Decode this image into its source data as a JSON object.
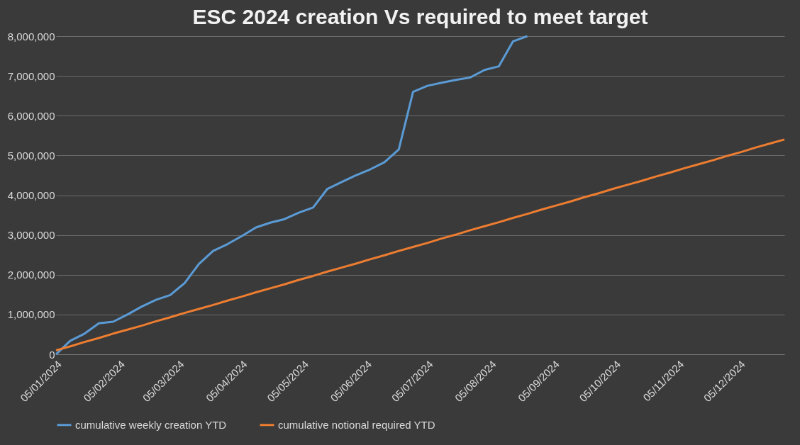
{
  "chart_data": {
    "type": "line",
    "title": "ESC 2024 creation Vs required to meet target",
    "x": [
      "2024-01-05",
      "2024-01-12",
      "2024-01-19",
      "2024-01-26",
      "2024-02-02",
      "2024-02-09",
      "2024-02-16",
      "2024-02-23",
      "2024-03-01",
      "2024-03-08",
      "2024-03-15",
      "2024-03-22",
      "2024-03-29",
      "2024-04-05",
      "2024-04-12",
      "2024-04-19",
      "2024-04-26",
      "2024-05-03",
      "2024-05-10",
      "2024-05-17",
      "2024-05-24",
      "2024-05-31",
      "2024-06-07",
      "2024-06-14",
      "2024-06-21",
      "2024-06-28",
      "2024-07-05",
      "2024-07-12",
      "2024-07-19",
      "2024-07-26",
      "2024-08-02",
      "2024-08-09",
      "2024-08-16",
      "2024-08-23",
      "2024-08-30",
      "2024-09-06",
      "2024-09-13",
      "2024-09-20",
      "2024-09-27",
      "2024-10-04",
      "2024-10-11",
      "2024-10-18",
      "2024-10-25",
      "2024-11-01",
      "2024-11-08",
      "2024-11-15",
      "2024-11-22",
      "2024-11-29",
      "2024-12-06",
      "2024-12-13",
      "2024-12-20",
      "2024-12-27"
    ],
    "series": [
      {
        "name": "cumulative weekly creation YTD",
        "color": "#5b9bd5",
        "values": [
          0,
          340000,
          520000,
          780000,
          820000,
          1000000,
          1200000,
          1370000,
          1490000,
          1790000,
          2270000,
          2600000,
          2770000,
          2970000,
          3190000,
          3310000,
          3400000,
          3560000,
          3690000,
          4160000,
          4330000,
          4500000,
          4650000,
          4830000,
          5150000,
          6600000,
          6750000,
          6830000,
          6900000,
          6960000,
          7150000,
          7240000,
          7870000,
          8000000,
          null,
          null,
          null,
          null,
          null,
          null,
          null,
          null,
          null,
          null,
          null,
          null,
          null,
          null,
          null,
          null,
          null,
          null
        ]
      },
      {
        "name": "cumulative notional required YTD",
        "color": "#ed7d31",
        "values": [
          100000,
          200000,
          310000,
          410000,
          520000,
          620000,
          720000,
          830000,
          930000,
          1040000,
          1140000,
          1240000,
          1350000,
          1450000,
          1560000,
          1660000,
          1760000,
          1870000,
          1970000,
          2080000,
          2180000,
          2280000,
          2390000,
          2490000,
          2600000,
          2700000,
          2800000,
          2910000,
          3010000,
          3120000,
          3220000,
          3320000,
          3430000,
          3530000,
          3640000,
          3740000,
          3840000,
          3950000,
          4050000,
          4160000,
          4260000,
          4360000,
          4470000,
          4570000,
          4680000,
          4780000,
          4880000,
          4990000,
          5090000,
          5200000,
          5300000,
          5400000
        ]
      }
    ],
    "xlim": [
      "2024-01-05",
      "2024-12-27"
    ],
    "xticks": [
      {
        "value": "2024-01-05",
        "label": "05/01/2024"
      },
      {
        "value": "2024-02-05",
        "label": "05/02/2024"
      },
      {
        "value": "2024-03-05",
        "label": "05/03/2024"
      },
      {
        "value": "2024-04-05",
        "label": "05/04/2024"
      },
      {
        "value": "2024-05-05",
        "label": "05/05/2024"
      },
      {
        "value": "2024-06-05",
        "label": "05/06/2024"
      },
      {
        "value": "2024-07-05",
        "label": "05/07/2024"
      },
      {
        "value": "2024-08-05",
        "label": "05/08/2024"
      },
      {
        "value": "2024-09-05",
        "label": "05/09/2024"
      },
      {
        "value": "2024-10-05",
        "label": "05/10/2024"
      },
      {
        "value": "2024-11-05",
        "label": "05/11/2024"
      },
      {
        "value": "2024-12-05",
        "label": "05/12/2024"
      }
    ],
    "ylim": [
      0,
      8000000
    ],
    "yticks": [
      0,
      {
        "value": 1000000,
        "label": "1,000,000"
      },
      {
        "value": 2000000,
        "label": "2,000,000"
      },
      {
        "value": 3000000,
        "label": "3,000,000"
      },
      {
        "value": 4000000,
        "label": "4,000,000"
      },
      {
        "value": 5000000,
        "label": "5,000,000"
      },
      {
        "value": 6000000,
        "label": "6,000,000"
      },
      {
        "value": 7000000,
        "label": "7,000,000"
      },
      {
        "value": 8000000,
        "label": "8,000,000"
      }
    ],
    "grid": "y",
    "legend": "bottom",
    "marker": "none",
    "line_style": "solid"
  }
}
